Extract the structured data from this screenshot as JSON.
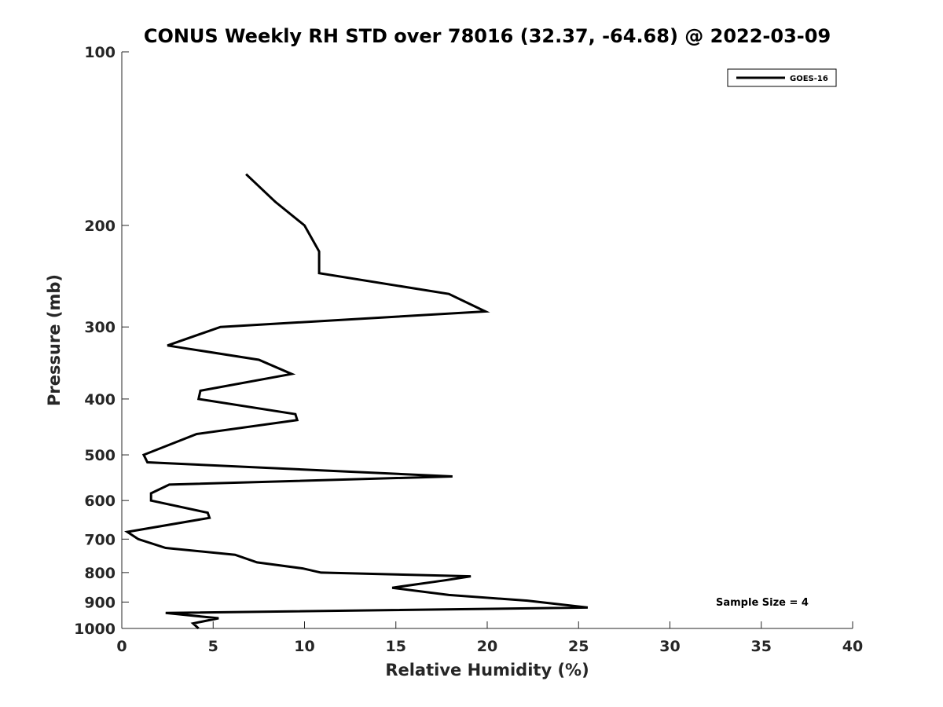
{
  "chart_data": {
    "type": "line",
    "title": "CONUS Weekly RH STD over 78016 (32.37, -64.68) @ 2022-03-09",
    "xlabel": "Relative Humidity (%)",
    "ylabel": "Pressure (mb)",
    "xlim": [
      0,
      40
    ],
    "ylim": [
      100,
      1000
    ],
    "y_scale": "log",
    "y_reversed": true,
    "x_ticks": [
      0,
      5,
      10,
      15,
      20,
      25,
      30,
      35,
      40
    ],
    "x_tick_labels": [
      "0",
      "5",
      "10",
      "15",
      "20",
      "25",
      "30",
      "35",
      "40"
    ],
    "y_ticks": [
      100,
      200,
      300,
      400,
      500,
      600,
      700,
      800,
      900,
      1000
    ],
    "y_tick_labels": [
      "100",
      "200",
      "300",
      "400",
      "500",
      "600",
      "700",
      "800",
      "900",
      "1000"
    ],
    "grid": false,
    "legend_position": "top-right",
    "line_color": "#000000",
    "series": [
      {
        "name": "GOES-16",
        "points": [
          [
            6.8,
            163
          ],
          [
            8.4,
            182
          ],
          [
            10.0,
            200
          ],
          [
            10.8,
            222
          ],
          [
            10.8,
            242
          ],
          [
            17.9,
            263
          ],
          [
            19.9,
            282
          ],
          [
            5.4,
            300
          ],
          [
            2.5,
            323
          ],
          [
            7.5,
            342
          ],
          [
            9.3,
            362
          ],
          [
            4.3,
            387
          ],
          [
            4.2,
            400
          ],
          [
            9.5,
            425
          ],
          [
            9.6,
            435
          ],
          [
            4.1,
            460
          ],
          [
            1.2,
            500
          ],
          [
            1.4,
            515
          ],
          [
            18.1,
            545
          ],
          [
            2.6,
            563
          ],
          [
            1.6,
            583
          ],
          [
            1.6,
            600
          ],
          [
            4.7,
            630
          ],
          [
            4.8,
            643
          ],
          [
            0.3,
            680
          ],
          [
            0.9,
            700
          ],
          [
            2.4,
            725
          ],
          [
            6.2,
            745
          ],
          [
            7.4,
            768
          ],
          [
            9.9,
            787
          ],
          [
            10.9,
            800
          ],
          [
            19.1,
            812
          ],
          [
            17.7,
            825
          ],
          [
            14.8,
            850
          ],
          [
            17.9,
            875
          ],
          [
            22.2,
            895
          ],
          [
            25.5,
            920
          ],
          [
            2.4,
            940
          ],
          [
            5.3,
            960
          ],
          [
            3.9,
            980
          ],
          [
            4.2,
            1000
          ]
        ]
      }
    ],
    "annotations": [
      "Sample Size = 4"
    ]
  }
}
